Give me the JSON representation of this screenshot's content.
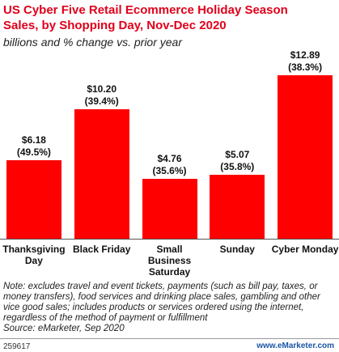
{
  "chart_data": {
    "type": "bar",
    "title": "US Cyber Five Retail Ecommerce Holiday Season Sales, by Shopping Day, Nov-Dec 2020",
    "subtitle": "billions and % change vs. prior year",
    "categories": [
      "Thanksgiving Day",
      "Black Friday",
      "Small Business Saturday",
      "Sunday",
      "Cyber Monday"
    ],
    "values": [
      6.18,
      10.2,
      4.76,
      5.07,
      12.89
    ],
    "value_labels": [
      "$6.18",
      "$10.20",
      "$4.76",
      "$5.07",
      "$12.89"
    ],
    "change_labels": [
      "(49.5%)",
      "(39.4%)",
      "(35.6%)",
      "(35.8%)",
      "(38.3%)"
    ],
    "color": "#ff0000",
    "ylim": [
      0,
      14
    ],
    "note": "Note: excludes travel and event tickets, payments (such as bill pay, taxes, or money transfers), food services and drinking place sales, gambling and other vice good sales; includes products or services ordered using the internet, regardless of the method of payment or fulfillment",
    "source": "Source: eMarketer, Sep 2020",
    "id": "259617",
    "site": "www.eMarketer.com"
  }
}
